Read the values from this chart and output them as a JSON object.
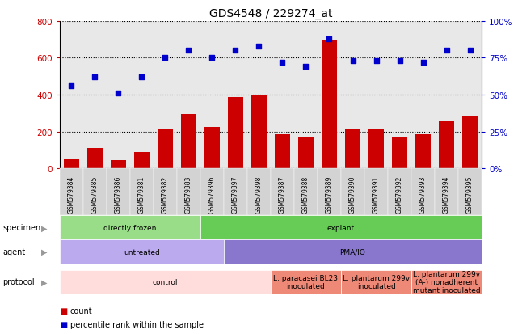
{
  "title": "GDS4548 / 229274_at",
  "samples": [
    "GSM579384",
    "GSM579385",
    "GSM579386",
    "GSM579381",
    "GSM579382",
    "GSM579383",
    "GSM579396",
    "GSM579397",
    "GSM579398",
    "GSM579387",
    "GSM579388",
    "GSM579389",
    "GSM579390",
    "GSM579391",
    "GSM579392",
    "GSM579393",
    "GSM579394",
    "GSM579395"
  ],
  "counts": [
    55,
    110,
    45,
    90,
    210,
    295,
    225,
    385,
    400,
    185,
    170,
    700,
    210,
    215,
    165,
    185,
    255,
    285
  ],
  "percentiles": [
    56,
    62,
    51,
    62,
    75,
    80,
    75,
    80,
    83,
    72,
    69,
    88,
    73,
    73,
    73,
    72,
    80,
    80
  ],
  "bar_color": "#cc0000",
  "dot_color": "#0000cc",
  "left_axis_color": "#cc0000",
  "right_axis_color": "#0000cc",
  "ylim_left": [
    0,
    800
  ],
  "ylim_right": [
    0,
    100
  ],
  "yticks_left": [
    0,
    200,
    400,
    600,
    800
  ],
  "yticks_right": [
    0,
    25,
    50,
    75,
    100
  ],
  "ytick_labels_left": [
    "0",
    "200",
    "400",
    "600",
    "800"
  ],
  "ytick_labels_right": [
    "0%",
    "25%",
    "50%",
    "75%",
    "100%"
  ],
  "specimen_row": {
    "label": "specimen",
    "segments": [
      {
        "text": "directly frozen",
        "start": 0,
        "end": 6,
        "color": "#99dd88"
      },
      {
        "text": "explant",
        "start": 6,
        "end": 18,
        "color": "#66cc55"
      }
    ]
  },
  "agent_row": {
    "label": "agent",
    "segments": [
      {
        "text": "untreated",
        "start": 0,
        "end": 7,
        "color": "#bbaaee"
      },
      {
        "text": "PMA/IO",
        "start": 7,
        "end": 18,
        "color": "#8877cc"
      }
    ]
  },
  "protocol_row": {
    "label": "protocol",
    "segments": [
      {
        "text": "control",
        "start": 0,
        "end": 9,
        "color": "#ffdddd"
      },
      {
        "text": "L. paracasei BL23\ninoculated",
        "start": 9,
        "end": 12,
        "color": "#ee8877"
      },
      {
        "text": "L. plantarum 299v\ninoculated",
        "start": 12,
        "end": 15,
        "color": "#ee8877"
      },
      {
        "text": "L. plantarum 299v\n(A-) nonadherent\nmutant inoculated",
        "start": 15,
        "end": 18,
        "color": "#ee8877"
      }
    ]
  },
  "background_color": "#ffffff",
  "grid_color": "#000000",
  "tick_area_color": "#d3d3d3",
  "plot_bg": "#e8e8e8"
}
